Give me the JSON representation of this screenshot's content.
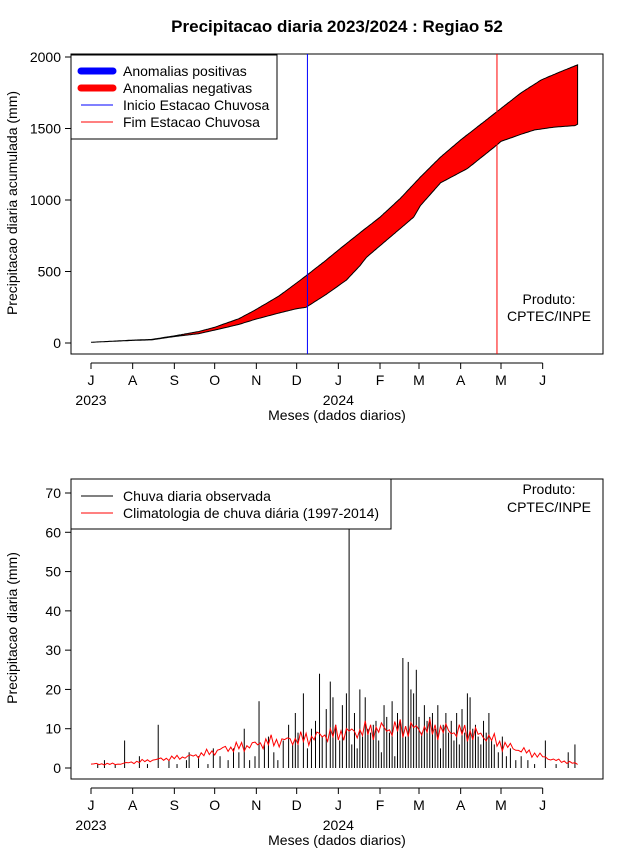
{
  "title": "Precipitacao diaria 2023/2024 : Regiao 52",
  "months": [
    "J",
    "A",
    "S",
    "O",
    "N",
    "D",
    "J",
    "F",
    "M",
    "A",
    "M",
    "J"
  ],
  "year_labels": [
    "2023",
    "2024"
  ],
  "product_label_line1": "Produto:",
  "product_label_line2": "CPTEC/INPE",
  "chart_data": [
    {
      "type": "area",
      "ylabel": "Precipitacao diaria acumulada (mm)",
      "xlabel": "Meses (dados diarios)",
      "ylim": [
        0,
        2000
      ],
      "yticks": [
        0,
        500,
        1000,
        1500,
        2000
      ],
      "x": "days since 2023-07-01",
      "series": [
        {
          "name": "Anomalias positivas",
          "color": "#0000ff",
          "values": []
        },
        {
          "name": "Anomalias negativas",
          "color": "#ff0000",
          "values": []
        }
      ],
      "cumulative_observed": [
        [
          0,
          5
        ],
        [
          31,
          18
        ],
        [
          45,
          22
        ],
        [
          62,
          45
        ],
        [
          80,
          65
        ],
        [
          92,
          90
        ],
        [
          110,
          130
        ],
        [
          122,
          165
        ],
        [
          140,
          210
        ],
        [
          153,
          240
        ],
        [
          160,
          250
        ],
        [
          175,
          340
        ],
        [
          184,
          400
        ],
        [
          190,
          440
        ],
        [
          200,
          540
        ],
        [
          205,
          600
        ],
        [
          215,
          680
        ],
        [
          230,
          800
        ],
        [
          240,
          880
        ],
        [
          245,
          960
        ],
        [
          260,
          1120
        ],
        [
          270,
          1170
        ],
        [
          280,
          1220
        ],
        [
          300,
          1370
        ],
        [
          305,
          1410
        ],
        [
          320,
          1460
        ],
        [
          330,
          1490
        ],
        [
          345,
          1510
        ],
        [
          360,
          1520
        ],
        [
          362,
          1530
        ]
      ],
      "cumulative_climatology": [
        [
          0,
          5
        ],
        [
          31,
          20
        ],
        [
          45,
          25
        ],
        [
          62,
          50
        ],
        [
          80,
          80
        ],
        [
          92,
          110
        ],
        [
          110,
          170
        ],
        [
          122,
          230
        ],
        [
          140,
          330
        ],
        [
          153,
          420
        ],
        [
          160,
          470
        ],
        [
          175,
          580
        ],
        [
          184,
          650
        ],
        [
          200,
          770
        ],
        [
          215,
          880
        ],
        [
          230,
          1010
        ],
        [
          245,
          1160
        ],
        [
          260,
          1300
        ],
        [
          275,
          1420
        ],
        [
          290,
          1530
        ],
        [
          305,
          1640
        ],
        [
          320,
          1750
        ],
        [
          335,
          1840
        ],
        [
          350,
          1900
        ],
        [
          362,
          1945
        ]
      ],
      "vertical_lines": [
        {
          "name": "Inicio Estacao Chuvosa",
          "day": 161,
          "color": "#0000ff"
        },
        {
          "name": "Fim Estacao Chuvosa",
          "day": 302,
          "color": "#ff0000"
        }
      ]
    },
    {
      "type": "bar",
      "ylabel": "Precipitacao diaria (mm)",
      "xlabel": "Meses (dados diarios)",
      "ylim": [
        0,
        70
      ],
      "yticks": [
        0,
        10,
        20,
        30,
        40,
        50,
        60,
        70
      ],
      "series": [
        {
          "name": "Chuva diaria observada",
          "color": "#000000",
          "days": [
            5,
            10,
            18,
            25,
            36,
            42,
            50,
            58,
            64,
            71,
            73,
            80,
            87,
            91,
            96,
            102,
            106,
            110,
            114,
            118,
            122,
            125,
            129,
            132,
            136,
            139,
            143,
            147,
            150,
            152,
            154,
            158,
            161,
            164,
            167,
            170,
            172,
            175,
            178,
            180,
            182,
            185,
            187,
            190,
            192,
            194,
            196,
            198,
            200,
            202,
            204,
            206,
            208,
            210,
            212,
            214,
            216,
            218,
            220,
            222,
            224,
            226,
            228,
            230,
            232,
            234,
            236,
            238,
            240,
            242,
            244,
            246,
            248,
            250,
            252,
            254,
            256,
            258,
            260,
            262,
            264,
            266,
            268,
            270,
            272,
            274,
            276,
            278,
            280,
            282,
            284,
            286,
            288,
            290,
            292,
            294,
            296,
            298,
            300,
            303,
            306,
            309,
            312,
            316,
            320,
            325,
            330,
            338,
            346,
            355,
            360
          ],
          "values": [
            1,
            2,
            1,
            7,
            3,
            1,
            11,
            2,
            1,
            2,
            4,
            3,
            1,
            5,
            3,
            2,
            5,
            4,
            10,
            2,
            3,
            17,
            6,
            8,
            4,
            2,
            7,
            11,
            6,
            14,
            9,
            19,
            5,
            10,
            12,
            24,
            8,
            15,
            22,
            18,
            11,
            7,
            16,
            19,
            68,
            6,
            14,
            5,
            20,
            8,
            18,
            10,
            9,
            11,
            12,
            7,
            4,
            16,
            13,
            9,
            17,
            3,
            14,
            12,
            28,
            8,
            27,
            20,
            19,
            25,
            13,
            9,
            16,
            12,
            13,
            14,
            10,
            16,
            5,
            11,
            14,
            9,
            12,
            7,
            14,
            6,
            15,
            9,
            19,
            18,
            10,
            11,
            8,
            6,
            12,
            9,
            14,
            7,
            6,
            4,
            8,
            3,
            5,
            2,
            3,
            2,
            1,
            7,
            1,
            4,
            6
          ]
        },
        {
          "name": "Climatologia de chuva diária (1997-2014)",
          "color": "#ff0000",
          "points": [
            [
              0,
              1
            ],
            [
              20,
              1
            ],
            [
              45,
              2
            ],
            [
              60,
              2.5
            ],
            [
              75,
              3
            ],
            [
              90,
              4
            ],
            [
              100,
              5
            ],
            [
              115,
              5.5
            ],
            [
              130,
              6.5
            ],
            [
              145,
              7
            ],
            [
              160,
              7.5
            ],
            [
              175,
              8.5
            ],
            [
              190,
              9
            ],
            [
              205,
              9.5
            ],
            [
              220,
              10
            ],
            [
              235,
              10
            ],
            [
              250,
              10
            ],
            [
              265,
              9.5
            ],
            [
              280,
              9
            ],
            [
              295,
              8
            ],
            [
              305,
              6
            ],
            [
              315,
              5
            ],
            [
              325,
              4
            ],
            [
              335,
              3
            ],
            [
              345,
              2
            ],
            [
              355,
              1.5
            ],
            [
              362,
              1
            ]
          ]
        }
      ]
    }
  ]
}
